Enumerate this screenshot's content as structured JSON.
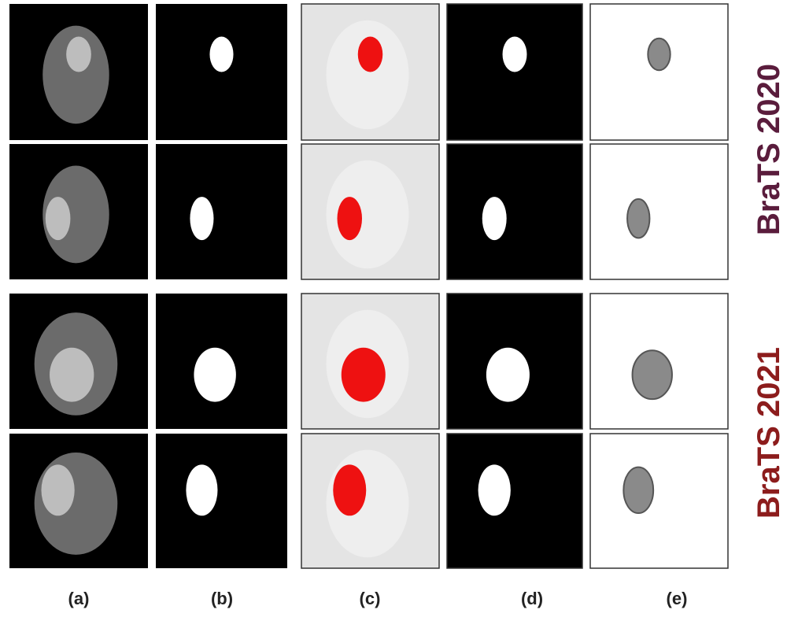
{
  "columns": [
    "(a)",
    "(b)",
    "(c)",
    "(d)",
    "(e)"
  ],
  "groups": [
    {
      "label": "BraTS 2020"
    },
    {
      "label": "BraTS 2021"
    }
  ]
}
